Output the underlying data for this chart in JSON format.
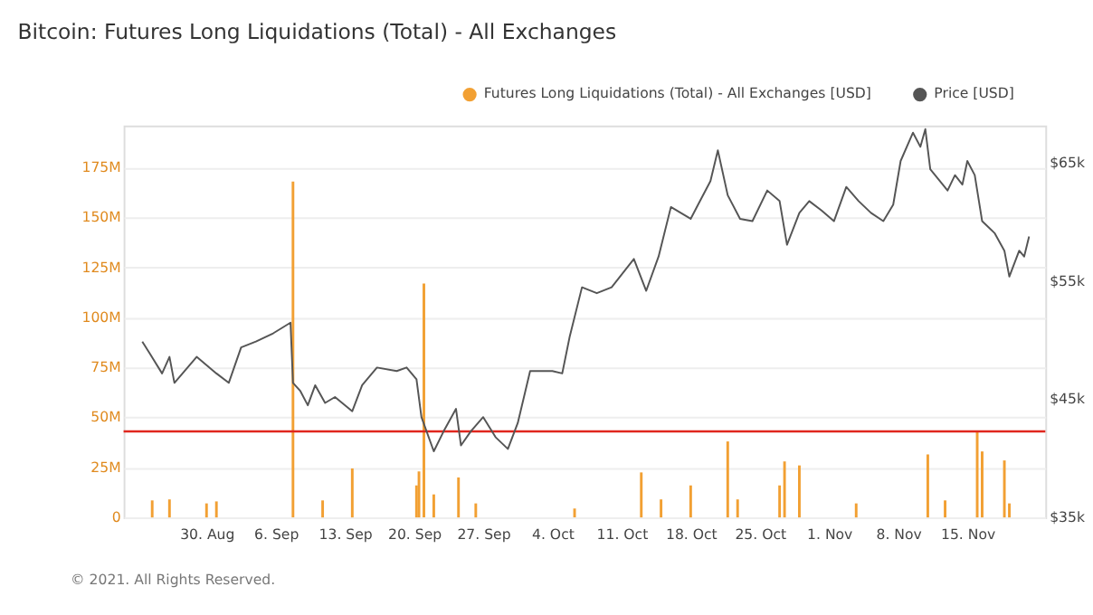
{
  "chart_data": {
    "type": "bar",
    "title": "Bitcoin: Futures Long Liquidations (Total) - All Exchanges",
    "xlim": [
      "2021-08-22T12:00",
      "2021-11-22T00:00"
    ],
    "xticks": [
      {
        "value": "2021-08-30T00:00",
        "label": "30. Aug"
      },
      {
        "value": "2021-09-06T00:00",
        "label": "6. Sep"
      },
      {
        "value": "2021-09-13T00:00",
        "label": "13. Sep"
      },
      {
        "value": "2021-09-20T00:00",
        "label": "20. Sep"
      },
      {
        "value": "2021-09-27T00:00",
        "label": "27. Sep"
      },
      {
        "value": "2021-10-04T00:00",
        "label": "4. Oct"
      },
      {
        "value": "2021-10-11T00:00",
        "label": "11. Oct"
      },
      {
        "value": "2021-10-18T00:00",
        "label": "18. Oct"
      },
      {
        "value": "2021-10-25T00:00",
        "label": "25. Oct"
      },
      {
        "value": "2021-11-01T00:00",
        "label": "1. Nov"
      },
      {
        "value": "2021-11-08T00:00",
        "label": "8. Nov"
      },
      {
        "value": "2021-11-15T00:00",
        "label": "15. Nov"
      }
    ],
    "ylim": [
      0,
      196000000
    ],
    "yticks": [
      0,
      {
        "value": 25000000,
        "label": "25M"
      },
      {
        "value": 50000000,
        "label": "50M"
      },
      {
        "value": 75000000,
        "label": "75M"
      },
      {
        "value": 100000000,
        "label": "100M"
      },
      {
        "value": 125000000,
        "label": "125M"
      },
      {
        "value": 150000000,
        "label": "150M"
      },
      {
        "value": 175000000,
        "label": "175M"
      }
    ],
    "y2lim": [
      35000,
      68200
    ],
    "y2ticks": [
      {
        "value": 35000,
        "label": "$35k"
      },
      {
        "value": 45000,
        "label": "$45k"
      },
      {
        "value": 55000,
        "label": "$55k"
      },
      {
        "value": 65000,
        "label": "$65k"
      }
    ],
    "grid": "y",
    "legend": "top right",
    "marker": "none",
    "line_style": "solid",
    "series": [
      {
        "name": "Futures Long Liquidations (Total) - All Exchanges [USD]",
        "color": "#f2a033",
        "x": [
          "2021-08-24T12:00",
          "2021-08-26T06:00",
          "2021-08-30T00:00",
          "2021-08-31T00:00",
          "2021-09-07T18:00",
          "2021-09-10T18:00",
          "2021-09-13T18:00",
          "2021-09-20T06:00",
          "2021-09-20T12:00",
          "2021-09-21T00:00",
          "2021-09-22T00:00",
          "2021-09-24T12:00",
          "2021-09-26T06:00",
          "2021-10-06T06:00",
          "2021-10-13T00:00",
          "2021-10-15T00:00",
          "2021-10-18T00:00",
          "2021-10-21T18:00",
          "2021-10-22T18:00",
          "2021-10-27T00:00",
          "2021-10-27T12:00",
          "2021-10-29T00:00",
          "2021-11-03T18:00",
          "2021-11-11T00:00",
          "2021-11-12T18:00",
          "2021-11-16T00:00",
          "2021-11-16T12:00",
          "2021-11-18T18:00",
          "2021-11-19T06:00"
        ],
        "values": [
          8500000,
          9000000,
          7000000,
          8000000,
          168000000,
          8500000,
          24500000,
          16000000,
          23000000,
          117000000,
          11500000,
          20000000,
          7000000,
          4500000,
          22500000,
          9000000,
          16000000,
          38000000,
          9000000,
          16000000,
          28000000,
          26000000,
          7000000,
          31500000,
          8500000,
          43000000,
          33000000,
          28500000,
          7000000
        ]
      },
      {
        "name": "Price [USD]",
        "type": "line",
        "axis": "y2",
        "color": "#555555",
        "x": [
          "2021-08-23T12:00",
          "2021-08-24T06:00",
          "2021-08-25T12:00",
          "2021-08-26T06:00",
          "2021-08-26T18:00",
          "2021-08-29T00:00",
          "2021-08-31T00:00",
          "2021-09-01T06:00",
          "2021-09-02T12:00",
          "2021-09-04T00:00",
          "2021-09-05T18:00",
          "2021-09-07T12:00",
          "2021-09-07T18:00",
          "2021-09-08T12:00",
          "2021-09-09T06:00",
          "2021-09-10T00:00",
          "2021-09-11T00:00",
          "2021-09-12T00:00",
          "2021-09-13T18:00",
          "2021-09-14T18:00",
          "2021-09-16T06:00",
          "2021-09-18T06:00",
          "2021-09-19T06:00",
          "2021-09-20T06:00",
          "2021-09-20T18:00",
          "2021-09-22T00:00",
          "2021-09-23T00:00",
          "2021-09-24T06:00",
          "2021-09-24T18:00",
          "2021-09-25T18:00",
          "2021-09-27T00:00",
          "2021-09-28T06:00",
          "2021-09-29T12:00",
          "2021-09-30T12:00",
          "2021-10-01T18:00",
          "2021-10-04T00:00",
          "2021-10-05T00:00",
          "2021-10-05T18:00",
          "2021-10-07T00:00",
          "2021-10-08T12:00",
          "2021-10-10T00:00",
          "2021-10-12T06:00",
          "2021-10-13T12:00",
          "2021-10-14T18:00",
          "2021-10-16T00:00",
          "2021-10-18T00:00",
          "2021-10-18T18:00",
          "2021-10-20T00:00",
          "2021-10-20T18:00",
          "2021-10-21T18:00",
          "2021-10-23T00:00",
          "2021-10-24T06:00",
          "2021-10-25T18:00",
          "2021-10-27T00:00",
          "2021-10-27T18:00",
          "2021-10-29T00:00",
          "2021-10-30T00:00",
          "2021-10-31T06:00",
          "2021-11-01T12:00",
          "2021-11-02T18:00",
          "2021-11-04T00:00",
          "2021-11-05T06:00",
          "2021-11-06T12:00",
          "2021-11-07T12:00",
          "2021-11-08T06:00",
          "2021-11-09T12:00",
          "2021-11-10T06:00",
          "2021-11-10T18:00",
          "2021-11-11T06:00",
          "2021-11-13T00:00",
          "2021-11-13T18:00",
          "2021-11-14T12:00",
          "2021-11-15T00:00",
          "2021-11-15T18:00",
          "2021-11-16T12:00",
          "2021-11-17T18:00",
          "2021-11-18T18:00",
          "2021-11-19T06:00",
          "2021-11-20T06:00",
          "2021-11-20T18:00",
          "2021-11-21T06:00"
        ],
        "values": [
          49900,
          48900,
          47200,
          48600,
          46400,
          48600,
          47200,
          46400,
          49400,
          49900,
          50600,
          51500,
          46400,
          45700,
          44500,
          46200,
          44700,
          45200,
          44000,
          46200,
          47700,
          47400,
          47700,
          46700,
          43500,
          40600,
          42300,
          44200,
          41100,
          42300,
          43500,
          41800,
          40800,
          43000,
          47400,
          47400,
          47200,
          50300,
          54500,
          54000,
          54500,
          56900,
          54200,
          57100,
          61300,
          60300,
          61500,
          63500,
          66100,
          62300,
          60300,
          60100,
          62700,
          61800,
          58100,
          60800,
          61800,
          61000,
          60100,
          63000,
          61800,
          60800,
          60100,
          61500,
          65200,
          67600,
          66400,
          67900,
          64500,
          62700,
          64000,
          63200,
          65200,
          64000,
          60100,
          59100,
          57600,
          55400,
          57600,
          57100,
          58800
        ]
      }
    ],
    "ref_lines": [
      {
        "axis": "y",
        "value": 43000000,
        "color": "#e0261d",
        "line_style": "solid"
      }
    ],
    "annotations": [
      "© 2021. All Rights Reserved."
    ]
  }
}
